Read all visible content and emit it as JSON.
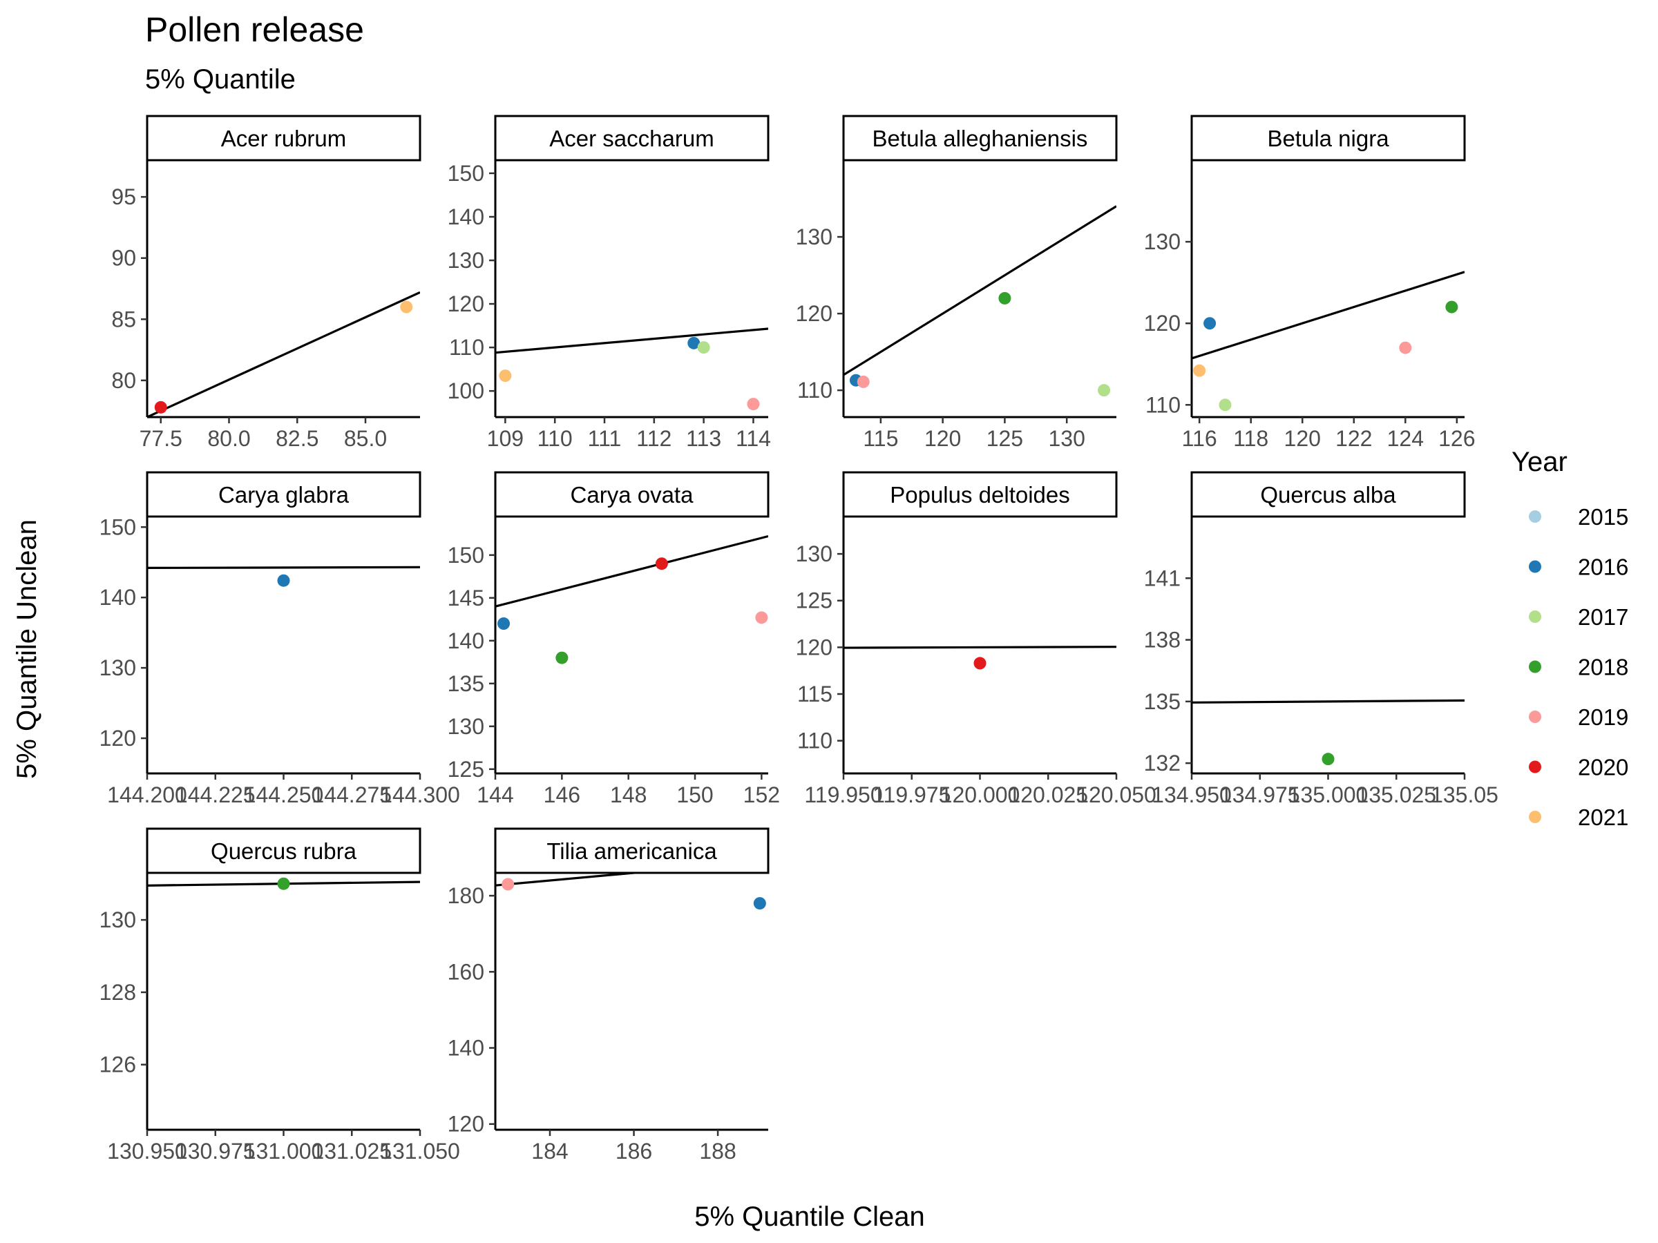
{
  "chart_data": {
    "type": "scatter",
    "title": "Pollen release",
    "subtitle": "5% Quantile",
    "xlabel": "5% Quantile Clean",
    "ylabel": "5% Quantile Unclean",
    "facet_scales": "free",
    "grid": false,
    "legend": {
      "title": "Year",
      "position": "right",
      "entries": [
        {
          "label": "2015",
          "color": "#a6cee3"
        },
        {
          "label": "2016",
          "color": "#1f78b4"
        },
        {
          "label": "2017",
          "color": "#b2df8a"
        },
        {
          "label": "2018",
          "color": "#33a02c"
        },
        {
          "label": "2019",
          "color": "#fb9a99"
        },
        {
          "label": "2020",
          "color": "#e31a1c"
        },
        {
          "label": "2021",
          "color": "#fdbf6f"
        }
      ]
    },
    "panels": [
      {
        "name": "Acer rubrum",
        "xlim": [
          77.0,
          87.0
        ],
        "ylim": [
          77.0,
          98.0
        ],
        "xticks": [
          77.5,
          80.0,
          82.5,
          85.0
        ],
        "xtick_labels": [
          "77.5",
          "80.0",
          "82.5",
          "85.0"
        ],
        "yticks": [
          80,
          85,
          90,
          95
        ],
        "ytick_labels": [
          "80",
          "85",
          "90",
          "95"
        ],
        "points": [
          {
            "x": 77.5,
            "y": 77.8,
            "year": "2020"
          },
          {
            "x": 86.5,
            "y": 86.0,
            "year": "2021"
          }
        ],
        "fit_line": [
          [
            77.0,
            77.0
          ],
          [
            87.0,
            87.2
          ]
        ]
      },
      {
        "name": "Acer saccharum",
        "xlim": [
          108.8,
          114.3
        ],
        "ylim": [
          94,
          153
        ],
        "xticks": [
          109,
          110,
          111,
          112,
          113,
          114
        ],
        "xtick_labels": [
          "109",
          "110",
          "111",
          "112",
          "113",
          "114"
        ],
        "yticks": [
          100,
          110,
          120,
          130,
          140,
          150
        ],
        "ytick_labels": [
          "100",
          "110",
          "120",
          "130",
          "140",
          "150"
        ],
        "points": [
          {
            "x": 109.0,
            "y": 103.5,
            "year": "2021"
          },
          {
            "x": 112.8,
            "y": 111.0,
            "year": "2016"
          },
          {
            "x": 113.0,
            "y": 110.0,
            "year": "2017"
          },
          {
            "x": 114.0,
            "y": 97.0,
            "year": "2019"
          }
        ],
        "fit_line": [
          [
            108.8,
            108.8
          ],
          [
            114.3,
            114.3
          ]
        ]
      },
      {
        "name": "Betula alleghaniensis",
        "xlim": [
          112,
          134
        ],
        "ylim": [
          106.5,
          140.0
        ],
        "xticks": [
          115,
          120,
          125,
          130
        ],
        "xtick_labels": [
          "115",
          "120",
          "125",
          "130"
        ],
        "yticks": [
          110,
          120,
          130
        ],
        "ytick_labels": [
          "110",
          "120",
          "130"
        ],
        "points": [
          {
            "x": 113.0,
            "y": 111.3,
            "year": "2016"
          },
          {
            "x": 113.6,
            "y": 111.1,
            "year": "2019"
          },
          {
            "x": 125.0,
            "y": 122.0,
            "year": "2018"
          },
          {
            "x": 133.0,
            "y": 110.0,
            "year": "2017"
          }
        ],
        "fit_line": [
          [
            112,
            112
          ],
          [
            134,
            134
          ]
        ]
      },
      {
        "name": "Betula nigra",
        "xlim": [
          115.7,
          126.3
        ],
        "ylim": [
          108.5,
          140.0
        ],
        "xticks": [
          116,
          118,
          120,
          122,
          124,
          126
        ],
        "xtick_labels": [
          "116",
          "118",
          "120",
          "122",
          "124",
          "126"
        ],
        "yticks": [
          110,
          120,
          130
        ],
        "ytick_labels": [
          "110",
          "120",
          "130"
        ],
        "points": [
          {
            "x": 116.0,
            "y": 114.2,
            "year": "2021"
          },
          {
            "x": 116.4,
            "y": 120.0,
            "year": "2016"
          },
          {
            "x": 117.0,
            "y": 110.0,
            "year": "2017"
          },
          {
            "x": 124.0,
            "y": 117.0,
            "year": "2019"
          },
          {
            "x": 125.8,
            "y": 122.0,
            "year": "2018"
          }
        ],
        "fit_line": [
          [
            115.7,
            115.7
          ],
          [
            126.3,
            126.3
          ]
        ]
      },
      {
        "name": "Carya glabra",
        "xlim": [
          144.2,
          144.3
        ],
        "ylim": [
          115,
          151.5
        ],
        "xticks": [
          144.2,
          144.225,
          144.25,
          144.275,
          144.3
        ],
        "xtick_labels": [
          "144.200",
          "144.225",
          "144.250",
          "144.275",
          "144.300"
        ],
        "yticks": [
          120,
          130,
          140,
          150
        ],
        "ytick_labels": [
          "120",
          "130",
          "140",
          "150"
        ],
        "points": [
          {
            "x": 144.25,
            "y": 142.4,
            "year": "2016"
          }
        ],
        "fit_line": [
          [
            144.2,
            144.2
          ],
          [
            144.3,
            144.3
          ]
        ]
      },
      {
        "name": "Carya ovata",
        "xlim": [
          144.0,
          152.2
        ],
        "ylim": [
          124.5,
          154.5
        ],
        "xticks": [
          144,
          146,
          148,
          150,
          152
        ],
        "xtick_labels": [
          "144",
          "146",
          "148",
          "150",
          "152"
        ],
        "yticks": [
          125,
          130,
          135,
          140,
          145,
          150
        ],
        "ytick_labels": [
          "125",
          "130",
          "135",
          "140",
          "145",
          "150"
        ],
        "points": [
          {
            "x": 144.25,
            "y": 142.0,
            "year": "2016"
          },
          {
            "x": 146.0,
            "y": 138.0,
            "year": "2018"
          },
          {
            "x": 149.0,
            "y": 149.0,
            "year": "2020"
          },
          {
            "x": 152.0,
            "y": 142.7,
            "year": "2019"
          }
        ],
        "fit_line": [
          [
            144.0,
            144.0
          ],
          [
            152.2,
            152.2
          ]
        ]
      },
      {
        "name": "Populus deltoides",
        "xlim": [
          119.95,
          120.05
        ],
        "ylim": [
          106.5,
          134.0
        ],
        "xticks": [
          119.95,
          119.975,
          120.0,
          120.025,
          120.05
        ],
        "xtick_labels": [
          "119.950",
          "119.975",
          "120.000",
          "120.025",
          "120.050"
        ],
        "yticks": [
          110,
          115,
          120,
          125,
          130
        ],
        "ytick_labels": [
          "110",
          "115",
          "120",
          "125",
          "130"
        ],
        "points": [
          {
            "x": 120.0,
            "y": 118.3,
            "year": "2020"
          }
        ],
        "fit_line": [
          [
            119.95,
            119.95
          ],
          [
            120.05,
            120.05
          ]
        ]
      },
      {
        "name": "Quercus alba",
        "xlim": [
          134.95,
          135.05
        ],
        "ylim": [
          131.5,
          144.0
        ],
        "xticks": [
          134.95,
          134.975,
          135.0,
          135.025,
          135.05
        ],
        "xtick_labels": [
          "134.950",
          "134.975",
          "135.000",
          "135.025",
          "135.05"
        ],
        "yticks": [
          132,
          135,
          138,
          141
        ],
        "ytick_labels": [
          "132",
          "135",
          "138",
          "141"
        ],
        "points": [
          {
            "x": 135.0,
            "y": 132.2,
            "year": "2018"
          }
        ],
        "fit_line": [
          [
            134.95,
            134.95
          ],
          [
            135.05,
            135.05
          ]
        ]
      },
      {
        "name": "Quercus rubra",
        "xlim": [
          130.95,
          131.05
        ],
        "ylim": [
          124.2,
          131.3
        ],
        "xticks": [
          130.95,
          130.975,
          131.0,
          131.025,
          131.05
        ],
        "xtick_labels": [
          "130.950",
          "130.975",
          "131.000",
          "131.025",
          "131.050"
        ],
        "yticks": [
          126,
          128,
          130
        ],
        "ytick_labels": [
          "126",
          "128",
          "130"
        ],
        "points": [
          {
            "x": 131.0,
            "y": 131.0,
            "year": "2018"
          }
        ],
        "fit_line": [
          [
            130.95,
            130.95
          ],
          [
            131.05,
            131.05
          ]
        ]
      },
      {
        "name": "Tilia americanica",
        "xlim": [
          182.7,
          189.2
        ],
        "ylim": [
          118.5,
          186.0
        ],
        "xticks": [
          184,
          186,
          188
        ],
        "xtick_labels": [
          "184",
          "186",
          "188"
        ],
        "yticks": [
          120,
          140,
          160,
          180
        ],
        "ytick_labels": [
          "120",
          "140",
          "160",
          "180"
        ],
        "points": [
          {
            "x": 183.0,
            "y": 183.0,
            "year": "2019"
          },
          {
            "x": 189.0,
            "y": 178.0,
            "year": "2016"
          }
        ],
        "fit_line": [
          [
            182.7,
            182.7
          ],
          [
            189.2,
            189.2
          ]
        ]
      }
    ]
  }
}
